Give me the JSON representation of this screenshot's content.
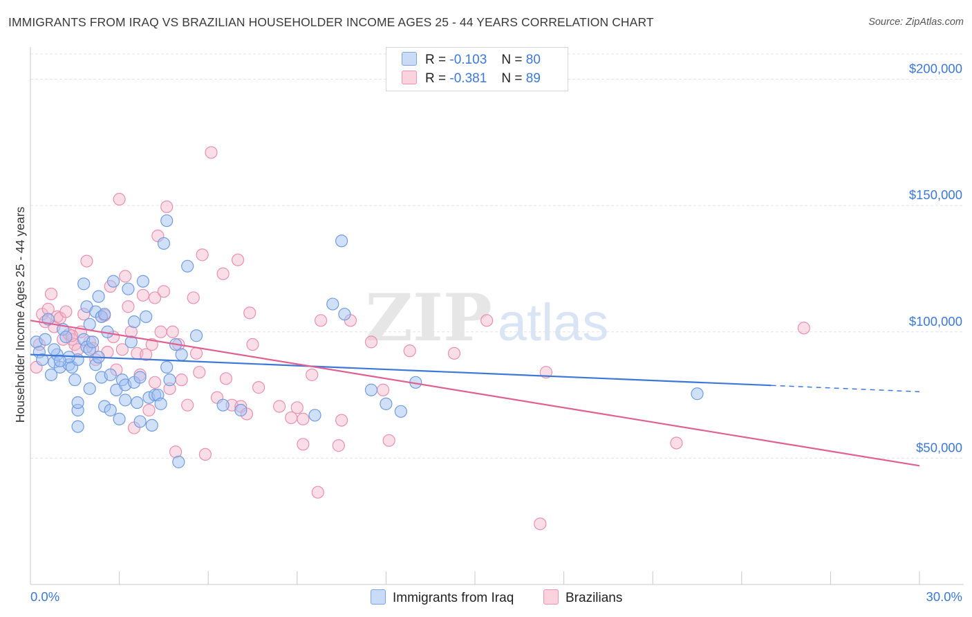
{
  "header": {
    "title": "IMMIGRANTS FROM IRAQ VS BRAZILIAN HOUSEHOLDER INCOME AGES 25 - 44 YEARS CORRELATION CHART",
    "source": "Source: ZipAtlas.com"
  },
  "watermark": {
    "zip": "ZIP",
    "atlas": "atlas"
  },
  "legend": {
    "rows": [
      {
        "r_label": "R =",
        "r_value": "-0.103",
        "n_label": "N =",
        "n_value": "80",
        "color": "#a4c2f4"
      },
      {
        "r_label": "R =",
        "r_value": "-0.381",
        "n_label": "N =",
        "n_value": "89",
        "color": "#f4b6c9"
      }
    ]
  },
  "bottom_legend": {
    "items": [
      {
        "label": "Immigrants from Iraq",
        "color": "#a4c2f4"
      },
      {
        "label": "Brazilians",
        "color": "#f4b6c9"
      }
    ]
  },
  "chart_data": {
    "type": "scatter",
    "title": "IMMIGRANTS FROM IRAQ VS BRAZILIAN HOUSEHOLDER INCOME AGES 25 - 44 YEARS CORRELATION CHART",
    "xlabel": "",
    "ylabel": "Householder Income Ages 25 - 44 years",
    "xlim": [
      0,
      30
    ],
    "ylim": [
      0,
      210000
    ],
    "x_tick_labels": [
      "0.0%",
      "30.0%"
    ],
    "y_ticks": [
      50000,
      100000,
      150000,
      200000
    ],
    "y_tick_labels": [
      "$50,000",
      "$100,000",
      "$150,000",
      "$200,000"
    ],
    "grid": true,
    "legend_position": "top-center",
    "colors": {
      "iraq": "#3c78d8",
      "iraq_fill": "#a4c2f4",
      "brazil": "#e06090",
      "brazil_fill": "#f4b6c9",
      "axis_label": "#3c78d8"
    },
    "series": [
      {
        "name": "Immigrants from Iraq",
        "r": -0.103,
        "n": 80,
        "trend": {
          "x": [
            0,
            25,
            30
          ],
          "y": [
            91000,
            78800,
            76300
          ]
        },
        "points": [
          [
            0.2,
            96000
          ],
          [
            0.3,
            92000
          ],
          [
            0.4,
            89000
          ],
          [
            0.5,
            97000
          ],
          [
            0.6,
            105000
          ],
          [
            0.7,
            83000
          ],
          [
            0.8,
            88000
          ],
          [
            0.9,
            91000
          ],
          [
            1.0,
            86000
          ],
          [
            1.1,
            101000
          ],
          [
            1.2,
            98000
          ],
          [
            1.3,
            87000
          ],
          [
            1.4,
            86000
          ],
          [
            1.5,
            81000
          ],
          [
            1.6,
            89000
          ],
          [
            1.3,
            90000
          ],
          [
            1.8,
            97000
          ],
          [
            1.9,
            94000
          ],
          [
            2.0,
            93000
          ],
          [
            1.6,
            69000
          ],
          [
            1.6,
            72000
          ],
          [
            1.6,
            62500
          ],
          [
            1.8,
            119000
          ],
          [
            1.9,
            110000
          ],
          [
            2.0,
            103000
          ],
          [
            2.0,
            77500
          ],
          [
            2.1,
            96000
          ],
          [
            2.2,
            87000
          ],
          [
            2.3,
            90000
          ],
          [
            2.2,
            108000
          ],
          [
            2.3,
            114000
          ],
          [
            2.4,
            106000
          ],
          [
            2.4,
            82000
          ],
          [
            2.5,
            70500
          ],
          [
            2.6,
            100000
          ],
          [
            2.7,
            83000
          ],
          [
            2.7,
            69000
          ],
          [
            2.8,
            120000
          ],
          [
            2.9,
            77000
          ],
          [
            3.0,
            65500
          ],
          [
            3.1,
            81000
          ],
          [
            3.2,
            73000
          ],
          [
            3.2,
            79000
          ],
          [
            3.3,
            117000
          ],
          [
            3.4,
            96000
          ],
          [
            3.5,
            104000
          ],
          [
            3.5,
            80000
          ],
          [
            3.6,
            72000
          ],
          [
            3.7,
            82000
          ],
          [
            3.7,
            64500
          ],
          [
            3.8,
            120000
          ],
          [
            3.9,
            106000
          ],
          [
            4.0,
            74000
          ],
          [
            4.1,
            63000
          ],
          [
            4.2,
            75000
          ],
          [
            4.3,
            75000
          ],
          [
            4.4,
            71500
          ],
          [
            4.5,
            135000
          ],
          [
            4.6,
            86000
          ],
          [
            4.6,
            144000
          ],
          [
            4.7,
            81000
          ],
          [
            4.9,
            95000
          ],
          [
            5.0,
            48500
          ],
          [
            5.1,
            91000
          ],
          [
            5.3,
            126000
          ],
          [
            5.6,
            98500
          ],
          [
            6.5,
            71000
          ],
          [
            7.1,
            69000
          ],
          [
            9.6,
            67000
          ],
          [
            10.2,
            111000
          ],
          [
            10.5,
            136000
          ],
          [
            10.6,
            107000
          ],
          [
            11.5,
            77000
          ],
          [
            12.0,
            71500
          ],
          [
            12.5,
            68500
          ],
          [
            13.0,
            80000
          ],
          [
            22.5,
            75500
          ],
          [
            0.8,
            93000
          ],
          [
            1.0,
            88500
          ],
          [
            2.5,
            107000
          ]
        ]
      },
      {
        "name": "Brazilians",
        "r": -0.381,
        "n": 89,
        "trend": {
          "x": [
            0,
            30
          ],
          "y": [
            104500,
            47000
          ]
        },
        "points": [
          [
            0.2,
            86000
          ],
          [
            0.3,
            95000
          ],
          [
            0.4,
            107000
          ],
          [
            0.5,
            104000
          ],
          [
            0.6,
            109000
          ],
          [
            0.7,
            115000
          ],
          [
            0.8,
            102000
          ],
          [
            0.9,
            106000
          ],
          [
            1.0,
            105500
          ],
          [
            1.1,
            97000
          ],
          [
            1.2,
            108000
          ],
          [
            1.3,
            99000
          ],
          [
            1.4,
            97000
          ],
          [
            1.5,
            95000
          ],
          [
            1.6,
            93000
          ],
          [
            1.7,
            100000
          ],
          [
            1.8,
            107000
          ],
          [
            1.9,
            128000
          ],
          [
            2.0,
            96000
          ],
          [
            2.1,
            93500
          ],
          [
            2.2,
            89000
          ],
          [
            2.4,
            106000
          ],
          [
            2.5,
            106500
          ],
          [
            2.6,
            92000
          ],
          [
            2.7,
            118000
          ],
          [
            2.8,
            98000
          ],
          [
            2.9,
            85000
          ],
          [
            3.0,
            152500
          ],
          [
            3.1,
            93000
          ],
          [
            3.2,
            122000
          ],
          [
            3.3,
            110000
          ],
          [
            3.4,
            100000
          ],
          [
            3.5,
            62000
          ],
          [
            3.6,
            91500
          ],
          [
            3.7,
            83000
          ],
          [
            3.8,
            114500
          ],
          [
            3.9,
            91000
          ],
          [
            4.0,
            69000
          ],
          [
            4.1,
            95000
          ],
          [
            4.2,
            80000
          ],
          [
            4.2,
            113500
          ],
          [
            4.3,
            138000
          ],
          [
            4.4,
            100000
          ],
          [
            4.5,
            116000
          ],
          [
            4.6,
            149500
          ],
          [
            4.7,
            77500
          ],
          [
            4.8,
            100000
          ],
          [
            4.9,
            52500
          ],
          [
            5.0,
            95000
          ],
          [
            5.1,
            81000
          ],
          [
            5.3,
            71000
          ],
          [
            5.5,
            113500
          ],
          [
            5.6,
            91500
          ],
          [
            5.7,
            84000
          ],
          [
            5.8,
            130500
          ],
          [
            5.9,
            51500
          ],
          [
            6.1,
            171000
          ],
          [
            6.3,
            74000
          ],
          [
            6.5,
            123000
          ],
          [
            6.6,
            81500
          ],
          [
            6.8,
            71000
          ],
          [
            7.0,
            128500
          ],
          [
            7.1,
            70500
          ],
          [
            7.3,
            67500
          ],
          [
            7.4,
            107500
          ],
          [
            7.5,
            95000
          ],
          [
            7.7,
            78000
          ],
          [
            8.4,
            70500
          ],
          [
            8.8,
            66000
          ],
          [
            9.0,
            70000
          ],
          [
            9.2,
            65500
          ],
          [
            9.2,
            55500
          ],
          [
            9.5,
            83000
          ],
          [
            9.8,
            104500
          ],
          [
            10.4,
            55000
          ],
          [
            10.5,
            65000
          ],
          [
            10.8,
            104500
          ],
          [
            11.5,
            96000
          ],
          [
            11.9,
            77000
          ],
          [
            12.1,
            57000
          ],
          [
            12.8,
            92500
          ],
          [
            14.3,
            91500
          ],
          [
            15.4,
            104500
          ],
          [
            17.2,
            24000
          ],
          [
            17.4,
            84000
          ],
          [
            21.8,
            56000
          ],
          [
            26.1,
            101500
          ],
          [
            1.4,
            98500
          ],
          [
            9.7,
            36500
          ]
        ]
      }
    ]
  }
}
